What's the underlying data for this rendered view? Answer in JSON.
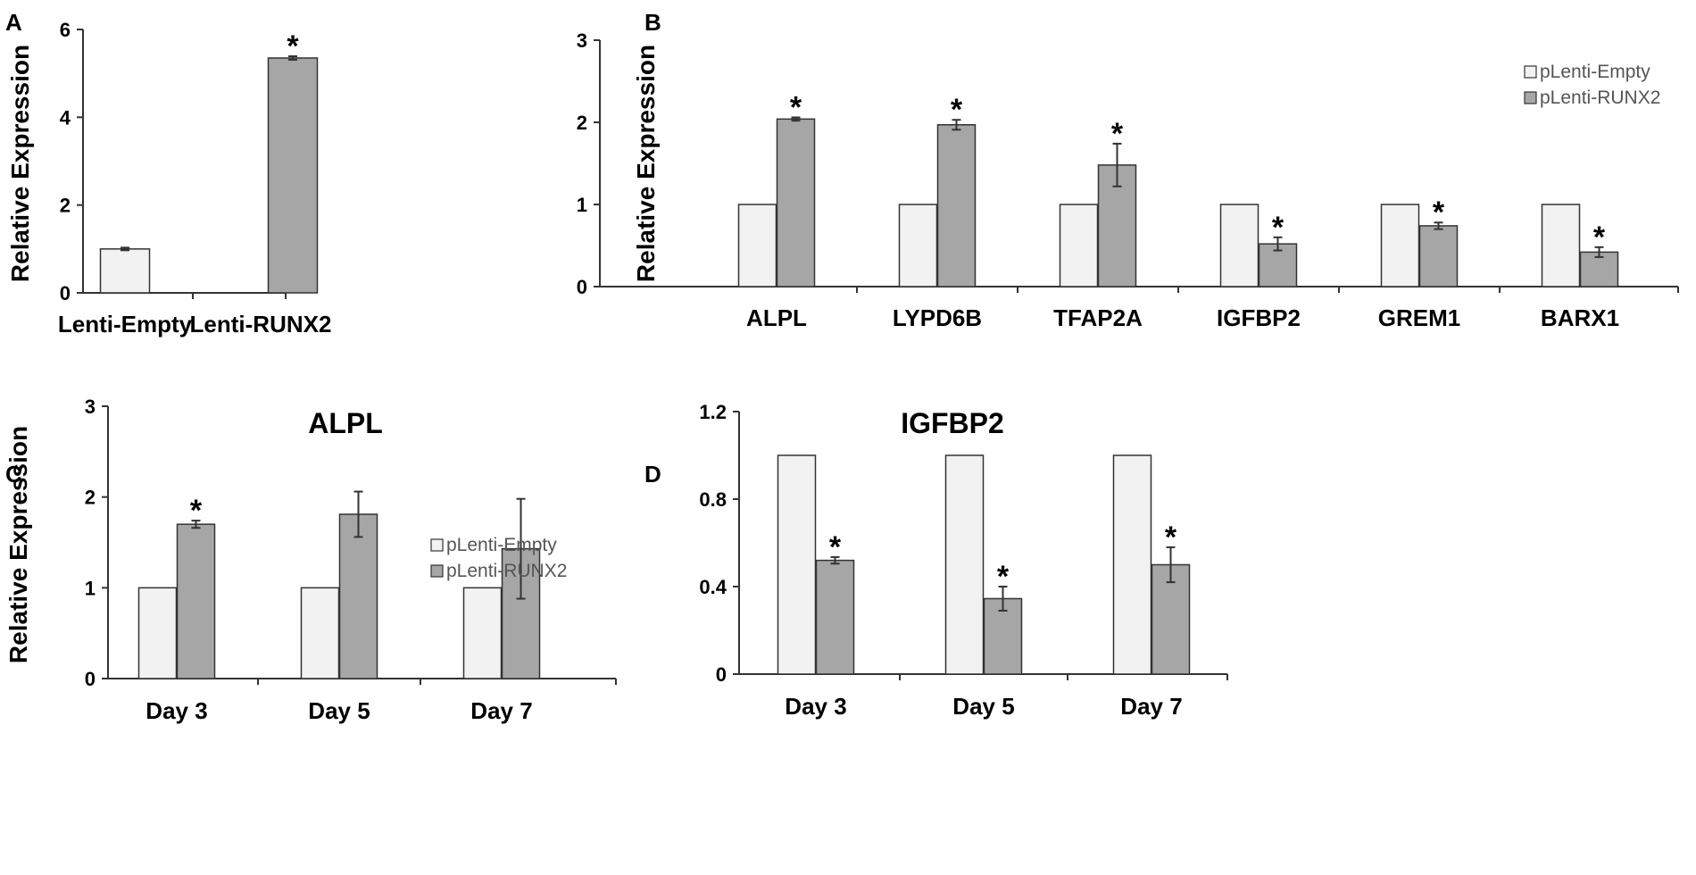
{
  "chart_data": [
    {
      "panel": "A",
      "type": "bar",
      "title": "",
      "ylabel": "Relative Expression",
      "xlabel": "",
      "ylim": [
        0,
        6
      ],
      "yticks": [
        0,
        2,
        4,
        6
      ],
      "yticklabels": [
        "0",
        "2",
        "4",
        "6"
      ],
      "categories": [
        "Lenti-Empty",
        "Lenti-RUNX2"
      ],
      "bar_colors": [
        "#f2f2f2",
        "#a6a6a6"
      ],
      "values": [
        1.0,
        5.35
      ],
      "errors": [
        0.03,
        0.04
      ],
      "significance": [
        "",
        "*"
      ]
    },
    {
      "panel": "B",
      "type": "bar",
      "title": "",
      "ylabel": "Relative Expression",
      "xlabel": "",
      "ylim": [
        0,
        3
      ],
      "yticks": [
        0,
        1,
        2,
        3
      ],
      "yticklabels": [
        "0",
        "1",
        "2",
        "3"
      ],
      "categories": [
        "ALPL",
        "LYPD6B",
        "TFAP2A",
        "IGFBP2",
        "GREM1",
        "BARX1"
      ],
      "legend_position": "top-right",
      "series": [
        {
          "name": "pLenti-Empty",
          "color": "#f2f2f2",
          "values": [
            1,
            1,
            1,
            1,
            1,
            1
          ],
          "errors": [
            0,
            0,
            0,
            0,
            0,
            0
          ],
          "significance": [
            "",
            "",
            "",
            "",
            "",
            ""
          ]
        },
        {
          "name": "pLenti-RUNX2",
          "color": "#a6a6a6",
          "values": [
            2.04,
            1.97,
            1.48,
            0.52,
            0.74,
            0.42
          ],
          "errors": [
            0.02,
            0.06,
            0.26,
            0.08,
            0.04,
            0.06
          ],
          "significance": [
            "*",
            "*",
            "*",
            "*",
            "*",
            "*"
          ]
        }
      ]
    },
    {
      "panel": "C",
      "type": "bar",
      "title": "ALPL",
      "ylabel": "Relative Expression",
      "xlabel": "",
      "ylim": [
        0,
        3
      ],
      "yticks": [
        0,
        1,
        2,
        3
      ],
      "yticklabels": [
        "0",
        "1",
        "2",
        "3"
      ],
      "categories": [
        "Day 3",
        "Day 5",
        "Day 7"
      ],
      "legend_position": "top-right",
      "series": [
        {
          "name": "pLenti-Empty",
          "color": "#f2f2f2",
          "values": [
            1,
            1,
            1
          ],
          "errors": [
            0,
            0,
            0
          ],
          "significance": [
            "",
            "",
            ""
          ]
        },
        {
          "name": "pLenti-RUNX2",
          "color": "#a6a6a6",
          "values": [
            1.7,
            1.81,
            1.43
          ],
          "errors": [
            0.04,
            0.25,
            0.55
          ],
          "significance": [
            "*",
            "",
            ""
          ]
        }
      ]
    },
    {
      "panel": "D",
      "type": "bar",
      "title": "IGFBP2",
      "ylabel": "",
      "xlabel": "",
      "ylim": [
        0,
        1.2
      ],
      "yticks": [
        0,
        0.4,
        0.8,
        1.2
      ],
      "yticklabels": [
        "0",
        "0.4",
        "0.8",
        "1.2"
      ],
      "categories": [
        "Day 3",
        "Day 5",
        "Day 7"
      ],
      "series": [
        {
          "name": "pLenti-Empty",
          "color": "#f2f2f2",
          "values": [
            1,
            1,
            1
          ],
          "errors": [
            0,
            0,
            0
          ],
          "significance": [
            "",
            "",
            ""
          ]
        },
        {
          "name": "pLenti-RUNX2",
          "color": "#a6a6a6",
          "values": [
            0.52,
            0.345,
            0.5
          ],
          "errors": [
            0.015,
            0.055,
            0.08
          ],
          "significance": [
            "*",
            "*",
            "*"
          ]
        }
      ]
    }
  ]
}
